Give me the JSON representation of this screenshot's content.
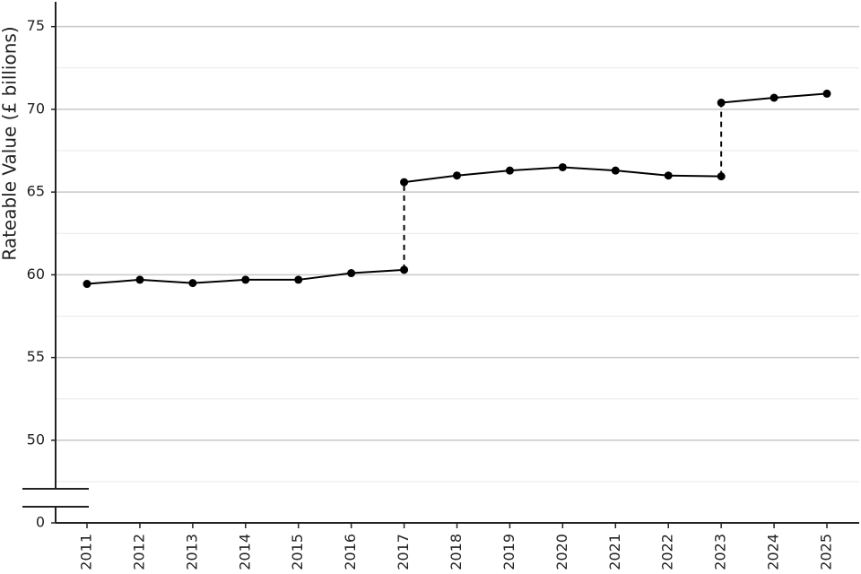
{
  "chart_data": {
    "type": "line",
    "y_label": "Rateable Value (£ billions)",
    "categories": [
      "2011",
      "2012",
      "2013",
      "2014",
      "2015",
      "2016",
      "2017",
      "2018",
      "2019",
      "2020",
      "2021",
      "2022",
      "2023",
      "2024",
      "2025"
    ],
    "series": [
      {
        "color": "#000000",
        "values": [
          59.45,
          59.7,
          59.5,
          59.7,
          59.7,
          60.1,
          60.3,
          null,
          null,
          null,
          null,
          null,
          null,
          null,
          null
        ]
      },
      {
        "color": "#000000",
        "values": [
          null,
          null,
          null,
          null,
          null,
          null,
          65.6,
          66.0,
          66.3,
          66.5,
          66.3,
          66.0,
          65.95,
          null,
          null
        ]
      },
      {
        "color": "#000000",
        "values": [
          null,
          null,
          null,
          null,
          null,
          null,
          null,
          null,
          null,
          null,
          null,
          null,
          70.4,
          70.7,
          70.95
        ]
      }
    ],
    "connector_style": "dashed",
    "ylim": [
      0,
      76.5
    ],
    "ybreak": [
      0,
      47.5
    ],
    "yticks": [
      0,
      50,
      55,
      60,
      65,
      70,
      75
    ],
    "minor_yticks": [
      47.5,
      52.5,
      57.5,
      62.5,
      67.5,
      72.5
    ],
    "grid": true
  }
}
